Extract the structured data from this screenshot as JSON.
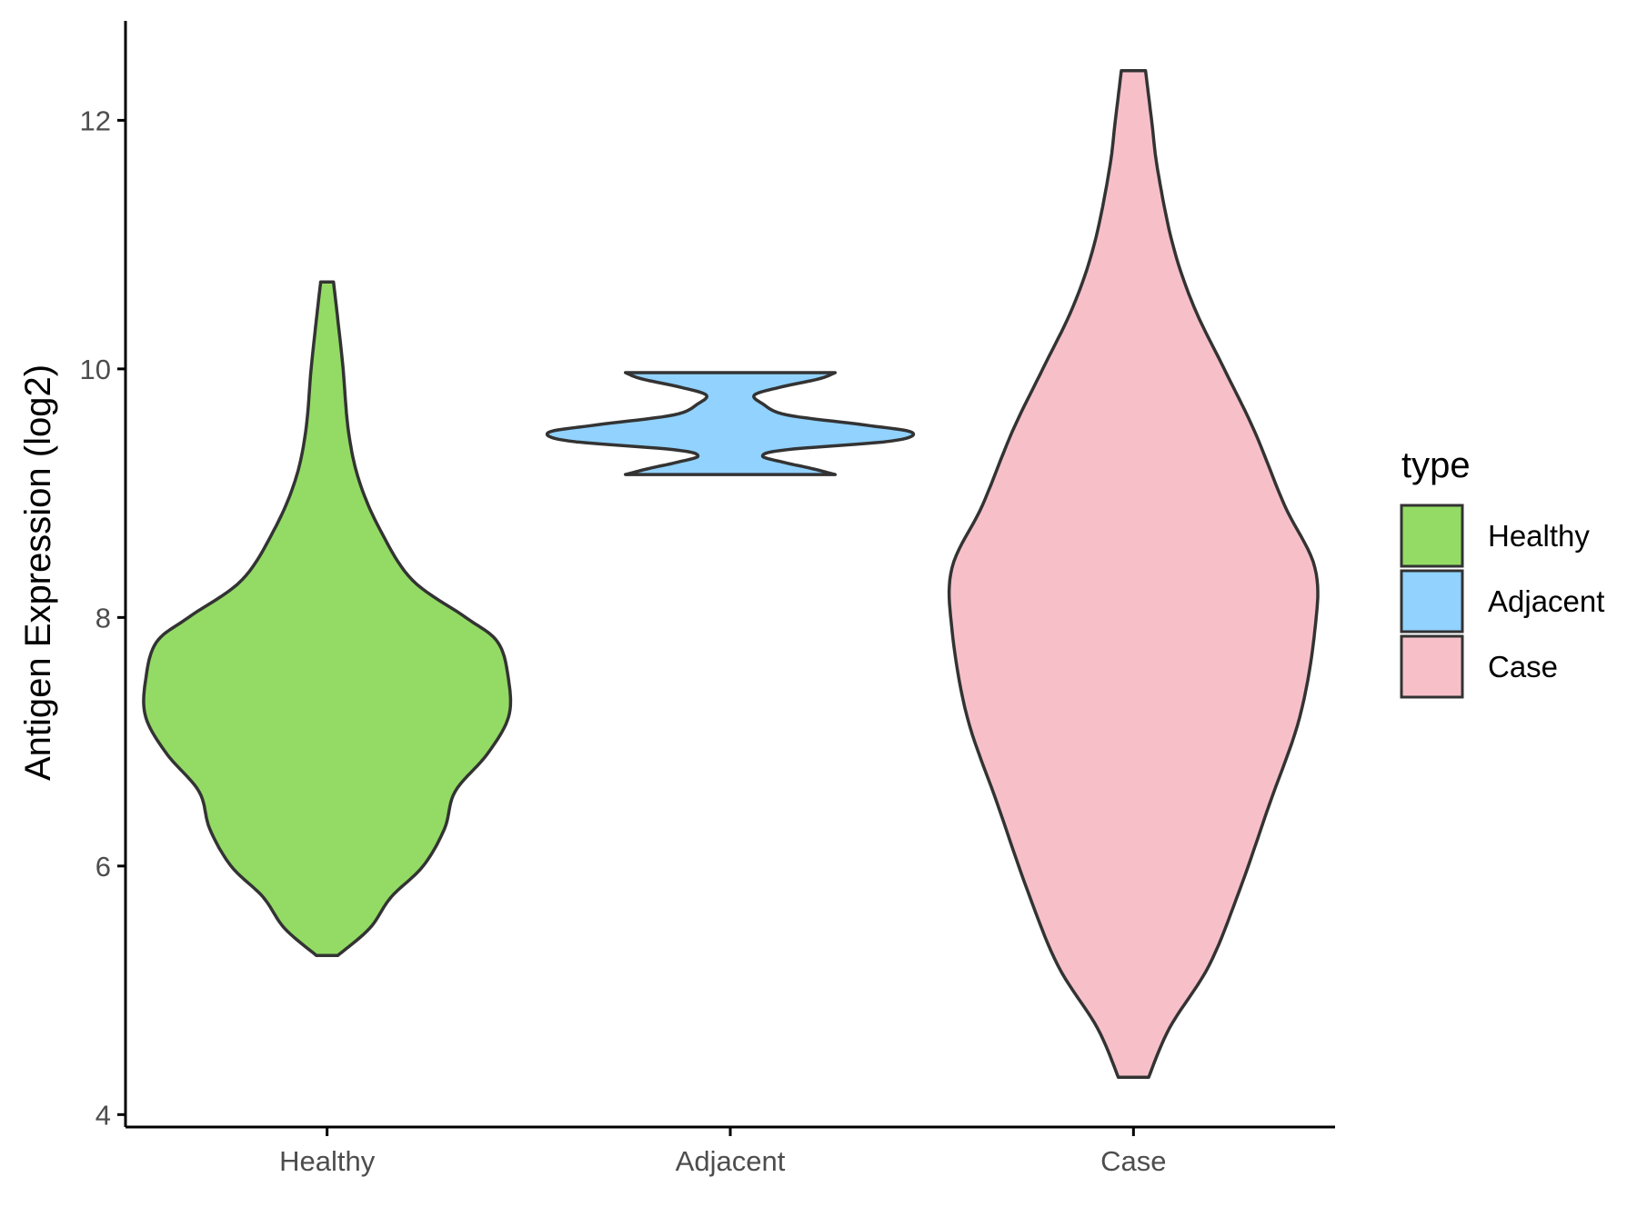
{
  "chart_data": {
    "type": "violin",
    "xlabel": "",
    "ylabel": "Antigen Expression (log2)",
    "ylim": [
      3.9,
      12.8
    ],
    "yticks": [
      4,
      6,
      8,
      10,
      12
    ],
    "categories": [
      "Healthy",
      "Adjacent",
      "Case"
    ],
    "colors": {
      "Healthy": "#93db65",
      "Adjacent": "#91d2ff",
      "Case": "#f7c0c9"
    },
    "outline_color": "#333333",
    "series": [
      {
        "name": "Healthy",
        "min": 5.28,
        "max": 10.7,
        "density": [
          [
            5.28,
            0.01
          ],
          [
            5.5,
            0.04
          ],
          [
            5.75,
            0.06
          ],
          [
            6.0,
            0.09
          ],
          [
            6.3,
            0.11
          ],
          [
            6.6,
            0.12
          ],
          [
            6.9,
            0.15
          ],
          [
            7.2,
            0.17
          ],
          [
            7.5,
            0.17
          ],
          [
            7.8,
            0.16
          ],
          [
            8.0,
            0.13
          ],
          [
            8.3,
            0.08
          ],
          [
            8.7,
            0.05
          ],
          [
            9.1,
            0.03
          ],
          [
            9.5,
            0.02
          ],
          [
            10.0,
            0.015
          ],
          [
            10.4,
            0.01
          ],
          [
            10.7,
            0.006
          ]
        ]
      },
      {
        "name": "Adjacent",
        "min": 9.15,
        "max": 9.97,
        "density": [
          [
            9.15,
            0.26
          ],
          [
            9.2,
            0.2
          ],
          [
            9.25,
            0.13
          ],
          [
            9.3,
            0.08
          ],
          [
            9.35,
            0.14
          ],
          [
            9.42,
            0.4
          ],
          [
            9.49,
            0.45
          ],
          [
            9.55,
            0.33
          ],
          [
            9.63,
            0.14
          ],
          [
            9.72,
            0.08
          ],
          [
            9.79,
            0.06
          ],
          [
            9.85,
            0.12
          ],
          [
            9.92,
            0.22
          ],
          [
            9.97,
            0.26
          ]
        ]
      },
      {
        "name": "Case",
        "min": 4.3,
        "max": 12.4,
        "density": [
          [
            4.3,
            0.005
          ],
          [
            4.7,
            0.012
          ],
          [
            5.2,
            0.025
          ],
          [
            5.8,
            0.035
          ],
          [
            6.5,
            0.045
          ],
          [
            7.2,
            0.055
          ],
          [
            7.9,
            0.06
          ],
          [
            8.4,
            0.06
          ],
          [
            8.9,
            0.05
          ],
          [
            9.5,
            0.04
          ],
          [
            10.0,
            0.03
          ],
          [
            10.5,
            0.02
          ],
          [
            11.0,
            0.013
          ],
          [
            11.6,
            0.008
          ],
          [
            12.0,
            0.006
          ],
          [
            12.4,
            0.004
          ]
        ]
      }
    ],
    "legend": {
      "title": "type",
      "position": "right",
      "items": [
        "Healthy",
        "Adjacent",
        "Case"
      ]
    },
    "grid": false
  }
}
